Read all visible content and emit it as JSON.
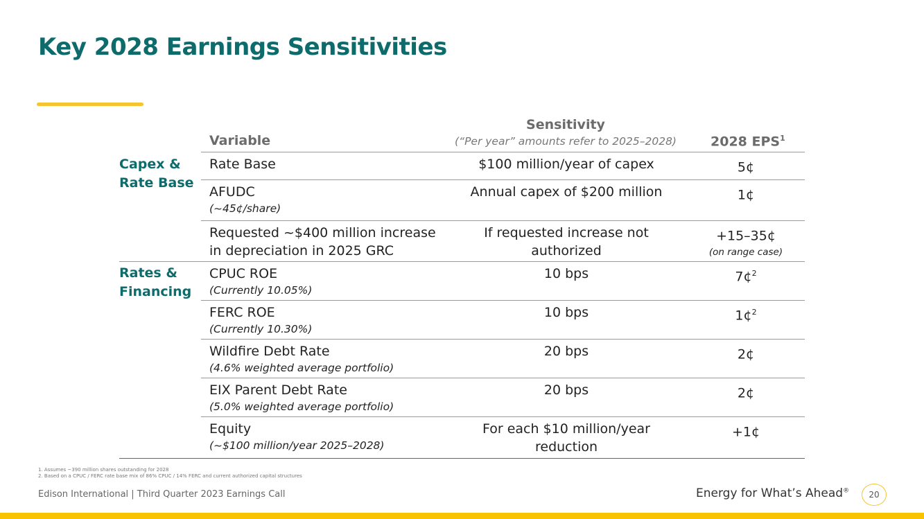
{
  "title": "Key 2028 Earnings Sensitivities",
  "table": {
    "headers": {
      "variable": "Variable",
      "sensitivity": "Sensitivity",
      "sensitivity_note": "(“Per year” amounts refer to 2025–2028)",
      "eps": "2028 EPS",
      "eps_sup": "1"
    },
    "groups": [
      "Capex & Rate Base",
      "Rates & Financing"
    ],
    "rows": [
      {
        "variable": "Rate Base",
        "note": "",
        "sensitivity": "$100 million/year of capex",
        "eps": "5¢",
        "eps_sup": "",
        "eps_note": ""
      },
      {
        "variable": "AFUDC",
        "note": "(~45¢/share)",
        "sensitivity": "Annual capex of $200 million",
        "eps": "1¢",
        "eps_sup": "",
        "eps_note": ""
      },
      {
        "variable": "Requested ~$400 million increase in depreciation in 2025 GRC",
        "note": "",
        "sensitivity": "If requested increase not authorized",
        "eps": "+15–35¢",
        "eps_sup": "",
        "eps_note": "(on range case)"
      },
      {
        "variable": "CPUC ROE",
        "note": "(Currently 10.05%)",
        "sensitivity": "10 bps",
        "eps": "7¢",
        "eps_sup": "2",
        "eps_note": ""
      },
      {
        "variable": "FERC ROE",
        "note": "(Currently 10.30%)",
        "sensitivity": "10 bps",
        "eps": "1¢",
        "eps_sup": "2",
        "eps_note": ""
      },
      {
        "variable": "Wildfire Debt Rate",
        "note": "(4.6% weighted average portfolio)",
        "sensitivity": "20 bps",
        "eps": "2¢",
        "eps_sup": "",
        "eps_note": ""
      },
      {
        "variable": "EIX Parent Debt Rate",
        "note": "(5.0% weighted average portfolio)",
        "sensitivity": "20 bps",
        "eps": "2¢",
        "eps_sup": "",
        "eps_note": ""
      },
      {
        "variable": "Equity",
        "note": "(~$100 million/year 2025–2028)",
        "sensitivity": "For each $10 million/year reduction",
        "eps": "+1¢",
        "eps_sup": "",
        "eps_note": ""
      }
    ]
  },
  "footnotes": [
    "1.  Assumes ~390 million shares outstanding for 2028",
    "2.  Based on a CPUC / FERC rate base mix of 86% CPUC / 14% FERC and current authorized capital structures"
  ],
  "footer": {
    "left": "Edison International |  Third Quarter 2023 Earnings Call",
    "tagline": "Energy for What’s Ahead",
    "tagline_mark": "®",
    "page": "20"
  },
  "colors": {
    "title": "#0e6b6b",
    "accent": "#f6c42e",
    "band": "#f8c300"
  }
}
